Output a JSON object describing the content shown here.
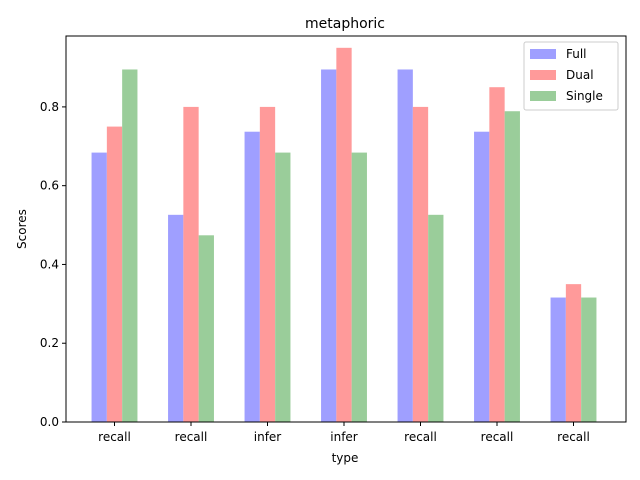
{
  "chart_data": {
    "type": "bar",
    "title": "metaphoric",
    "xlabel": "type",
    "ylabel": "Scores",
    "categories": [
      "recall",
      "recall",
      "infer",
      "infer",
      "recall",
      "recall",
      "recall"
    ],
    "ylim": [
      0,
      0.98
    ],
    "yticks": [
      0.0,
      0.2,
      0.4,
      0.6,
      0.8
    ],
    "ytick_labels": [
      "0.0",
      "0.2",
      "0.4",
      "0.6",
      "0.8"
    ],
    "grid": false,
    "legend_position": "top-right",
    "series": [
      {
        "name": "Full",
        "color": "#9f9fff",
        "values": [
          0.684,
          0.526,
          0.737,
          0.895,
          0.895,
          0.737,
          0.316
        ]
      },
      {
        "name": "Dual",
        "color": "#ff9a9a",
        "values": [
          0.75,
          0.8,
          0.8,
          0.95,
          0.8,
          0.85,
          0.35
        ]
      },
      {
        "name": "Single",
        "color": "#9acd9a",
        "values": [
          0.895,
          0.474,
          0.684,
          0.684,
          0.526,
          0.789,
          0.316
        ]
      }
    ]
  }
}
